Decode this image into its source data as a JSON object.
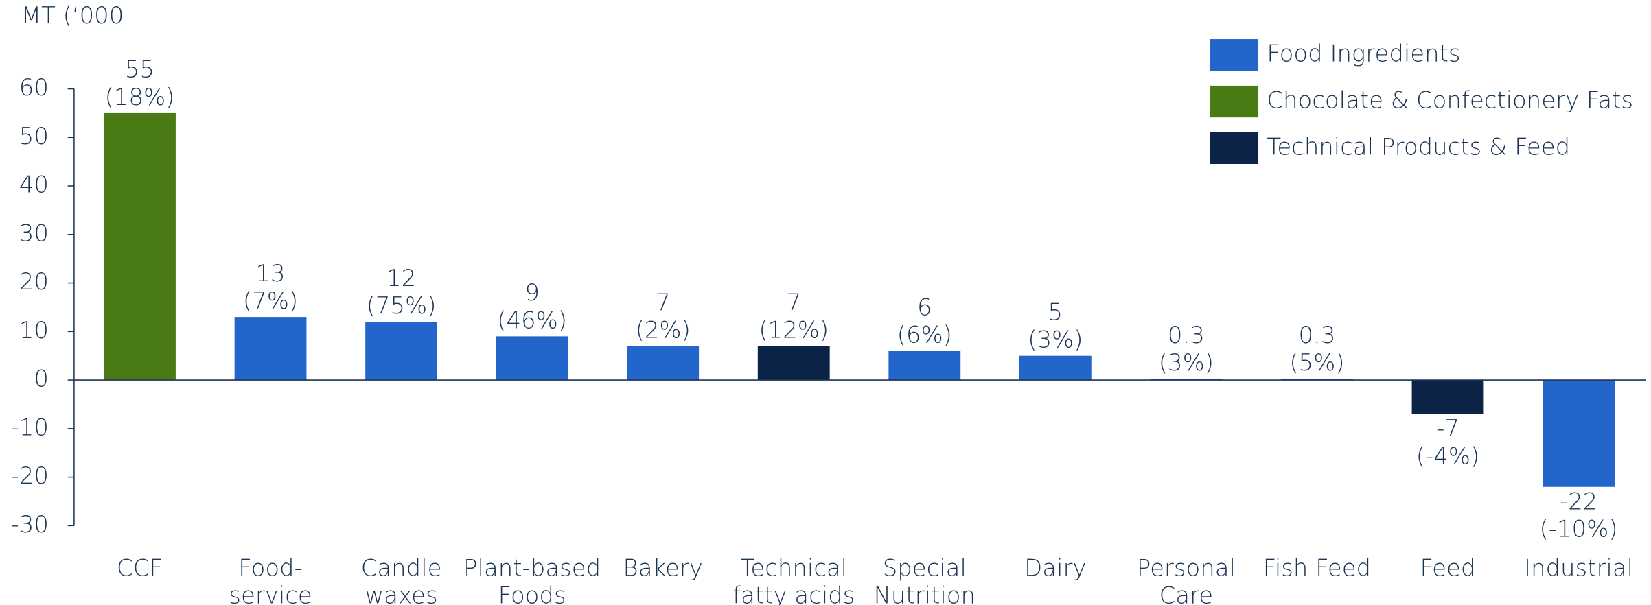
{
  "chart_data": {
    "type": "bar",
    "y_axis_label": "MT (‘000",
    "categories": [
      "CCF",
      "Food-\nservice",
      "Candle\nwaxes",
      "Plant-based\nFoods",
      "Bakery",
      "Technical\nfatty acids",
      "Special\nNutrition",
      "Dairy",
      "Personal\nCare",
      "Fish Feed",
      "Feed",
      "Industrial"
    ],
    "series": [
      {
        "name": "Food Ingredients",
        "color": "#2266cc",
        "values": [
          null,
          13,
          12,
          9,
          7,
          null,
          6,
          5,
          0.3,
          0.3,
          null,
          -22
        ]
      },
      {
        "name": "Chocolate & Confectionery Fats",
        "color": "#4a7a14",
        "values": [
          55,
          null,
          null,
          null,
          null,
          null,
          null,
          null,
          null,
          null,
          null,
          null
        ]
      },
      {
        "name": "Technical Products & Feed",
        "color": "#0a2347",
        "values": [
          null,
          null,
          null,
          null,
          null,
          7,
          null,
          null,
          null,
          null,
          -7,
          null
        ]
      }
    ],
    "pct_labels": [
      "(18%)",
      "(7%)",
      "(75%)",
      "(46%)",
      "(2%)",
      "(12%)",
      "(6%)",
      "(3%)",
      "(3%)",
      "(5%)",
      "(-4%)",
      "(-10%)"
    ],
    "ylim": [
      -30,
      60
    ],
    "yticks": [
      -30,
      -20,
      -10,
      0,
      10,
      20,
      30,
      40,
      50,
      60
    ],
    "legend": "top-right"
  }
}
